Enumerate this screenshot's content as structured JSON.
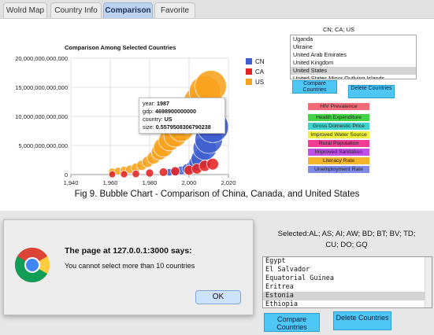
{
  "tabs": [
    {
      "label": "Wolrd Map",
      "active": false
    },
    {
      "label": "Country Info",
      "active": false
    },
    {
      "label": "Comparison",
      "active": true
    },
    {
      "label": "Favorite",
      "active": false
    }
  ],
  "chart": {
    "title": "Comparison Among Selected Countries",
    "legend": [
      {
        "label": "CN",
        "color": "#3f5fd0"
      },
      {
        "label": "CA",
        "color": "#e32222"
      },
      {
        "label": "US",
        "color": "#f8a21e"
      }
    ],
    "tooltip": {
      "year_label": "year:",
      "year": "1987",
      "gdp_label": "gdp:",
      "gdp": "4698900000000",
      "country_label": "country:",
      "country": "US",
      "size_label": "size:",
      "size": "0.5579508306790238"
    }
  },
  "chart_data": {
    "type": "scatter",
    "title": "Comparison Among Selected Countries",
    "xlabel": "",
    "ylabel": "",
    "xlim": [
      1940,
      2020
    ],
    "ylim": [
      0,
      20000000000000
    ],
    "x_ticks": [
      "1,940",
      "1,960",
      "1,980",
      "2,000",
      "2,020"
    ],
    "y_ticks": [
      "0",
      "5,000,000,000,000",
      "10,000,000,000,000",
      "15,000,000,000,000",
      "20,000,000,000,000"
    ],
    "legend_position": "right",
    "series": [
      {
        "name": "US",
        "color": "#f8a21e",
        "points": [
          [
            1961,
            500000000000,
            0.1
          ],
          [
            1964,
            600000000000,
            0.11
          ],
          [
            1967,
            750000000000,
            0.12
          ],
          [
            1970,
            900000000000,
            0.14
          ],
          [
            1973,
            1200000000000,
            0.16
          ],
          [
            1976,
            1600000000000,
            0.2
          ],
          [
            1979,
            2200000000000,
            0.24
          ],
          [
            1982,
            2900000000000,
            0.3
          ],
          [
            1985,
            3900000000000,
            0.43
          ],
          [
            1987,
            4698900000000,
            0.5579508306790238
          ],
          [
            1990,
            5900000000000,
            0.62
          ],
          [
            1993,
            6700000000000,
            0.68
          ],
          [
            1996,
            7800000000000,
            0.75
          ],
          [
            1999,
            9300000000000,
            0.82
          ],
          [
            2002,
            10600000000000,
            0.88
          ],
          [
            2005,
            12600000000000,
            0.94
          ],
          [
            2008,
            14300000000000,
            0.98
          ],
          [
            2011,
            15200000000000,
            1.0
          ]
        ]
      },
      {
        "name": "CN",
        "color": "#3f5fd0",
        "points": [
          [
            1990,
            400000000000,
            0.1
          ],
          [
            1993,
            500000000000,
            0.12
          ],
          [
            1996,
            700000000000,
            0.15
          ],
          [
            1999,
            1000000000000,
            0.2
          ],
          [
            2002,
            1400000000000,
            0.3
          ],
          [
            2004,
            2000000000000,
            0.42
          ],
          [
            2006,
            2700000000000,
            0.55
          ],
          [
            2008,
            4500000000000,
            0.7
          ],
          [
            2010,
            6000000000000,
            0.85
          ],
          [
            2012,
            8200000000000,
            1.0
          ]
        ]
      },
      {
        "name": "CA",
        "color": "#e32222",
        "points": [
          [
            1961,
            40000000000,
            0.08
          ],
          [
            1967,
            60000000000,
            0.09
          ],
          [
            1973,
            120000000000,
            0.1
          ],
          [
            1980,
            270000000000,
            0.12
          ],
          [
            1987,
            420000000000,
            0.14
          ],
          [
            1993,
            570000000000,
            0.16
          ],
          [
            2000,
            740000000000,
            0.19
          ],
          [
            2004,
            1000000000000,
            0.21
          ],
          [
            2008,
            1500000000000,
            0.24
          ],
          [
            2012,
            1800000000000,
            0.26
          ]
        ]
      }
    ]
  },
  "top_panel": {
    "selected": "CN; CA; US",
    "countries": [
      "Uganda",
      "Ukraine",
      "United Arab Emirates",
      "United Kingdom",
      "United States",
      "United States Minor Outlying Islands"
    ],
    "selected_country": "United States",
    "compare_label": "Compare Countries",
    "delete_label": "Delete Countries",
    "indicators": [
      {
        "label": "HIV Prevalence",
        "color": "#f26a75"
      },
      {
        "label": "Health Expenditure",
        "color": "#45d447"
      },
      {
        "label": "Gross Domestic Price",
        "color": "#3fd3ce"
      },
      {
        "label": "Improved Water Source",
        "color": "#eef23c"
      },
      {
        "label": "Rural Population",
        "color": "#ef3e93"
      },
      {
        "label": "Improved Sanitation",
        "color": "#c04ee8"
      },
      {
        "label": "Literacy Rate",
        "color": "#f5b52b"
      },
      {
        "label": "Unemployment Rate",
        "color": "#7d8ae8"
      }
    ]
  },
  "caption": "Fig 9. Bubble Chart - Comparison of China, Canada, and United States",
  "dialog": {
    "title": "The page at 127.0.0.1:3000 says:",
    "message": "You cannot select more than 10 countries",
    "ok_label": "OK"
  },
  "bottom_panel": {
    "selected_line1": "Selected:AL; AS; AI; AW; BD; BT; BV; TD;",
    "selected_line2": "CU; DO; GQ",
    "countries": [
      "Egypt",
      "El Salvador",
      "Equatorial Guinea",
      "Eritrea",
      "Estonia",
      "Ethiopia"
    ],
    "selected_country": "Estonia",
    "compare_label": "Compare Countries",
    "delete_label": "Delete Countries"
  }
}
